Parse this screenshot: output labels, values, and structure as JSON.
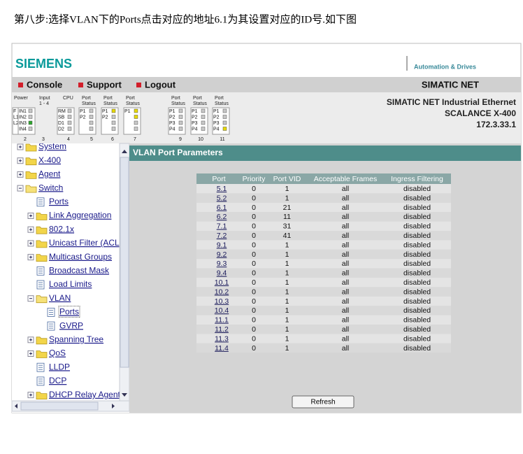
{
  "caption": "第八步:选择VLAN下的Ports点击对应的地址6.1为其设置对应的ID号.如下图",
  "header": {
    "brand": "SIEMENS",
    "tagline": "Automation & Drives"
  },
  "menu": {
    "items": [
      "Console",
      "Support",
      "Logout"
    ],
    "product": "SIMATIC NET"
  },
  "device": {
    "headers": [
      [
        "Power"
      ],
      [
        "Input",
        "1 - 4"
      ],
      [
        "CPU"
      ],
      [
        "Port",
        "Status"
      ],
      [
        "Port",
        "Status"
      ],
      [
        "Port",
        "Status"
      ],
      [
        "Port",
        "Status"
      ],
      [
        "Port",
        "Status"
      ],
      [
        "Port",
        "Status"
      ]
    ],
    "groups": [
      {
        "labels": [
          "F",
          "L1",
          "L2"
        ],
        "leds": [
          "off",
          "green",
          "green"
        ]
      },
      {
        "labels": [
          "IN1",
          "IN2",
          "IN3",
          "IN4"
        ],
        "leds": [
          "off",
          "off",
          "green",
          "off"
        ]
      },
      {
        "labels": [
          "RM",
          "SB",
          "D1",
          "D2"
        ],
        "leds": [
          "off",
          "off",
          "off",
          "off"
        ]
      },
      {
        "labels": [
          "P1",
          "P2"
        ],
        "leds": [
          "off",
          "off",
          "off",
          "off"
        ]
      },
      {
        "labels": [
          "P1",
          "P2"
        ],
        "leds": [
          "yellow",
          "off",
          "off",
          "off"
        ]
      },
      {
        "labels": [
          "P1"
        ],
        "leds": [
          "yellow",
          "yellow",
          "off",
          "off"
        ]
      },
      {
        "labels": [
          "P1",
          "P2",
          "P3",
          "P4"
        ],
        "leds": [
          "off",
          "off",
          "off",
          "off"
        ]
      },
      {
        "labels": [
          "P1",
          "P2",
          "P3",
          "P4"
        ],
        "leds": [
          "off",
          "off",
          "off",
          "off"
        ]
      },
      {
        "labels": [
          "P1",
          "P2",
          "P3",
          "P4"
        ],
        "leds": [
          "off",
          "off",
          "off",
          "yellow"
        ]
      }
    ],
    "numbers": [
      "2",
      "3",
      "4",
      "5",
      "6",
      "7",
      "9",
      "10",
      "11"
    ],
    "info": [
      "SIMATIC NET Industrial Ethernet",
      "SCALANCE X-400",
      "172.3.33.1"
    ]
  },
  "tree": [
    {
      "label": "System",
      "level": 0,
      "kind": "folder",
      "open": false
    },
    {
      "label": "X-400",
      "level": 0,
      "kind": "folder",
      "open": false
    },
    {
      "label": "Agent",
      "level": 0,
      "kind": "folder",
      "open": false
    },
    {
      "label": "Switch",
      "level": 0,
      "kind": "folder",
      "open": true
    },
    {
      "label": "Ports",
      "level": 1,
      "kind": "page"
    },
    {
      "label": "Link Aggregation",
      "level": 1,
      "kind": "folder",
      "open": false
    },
    {
      "label": "802.1x",
      "level": 1,
      "kind": "folder",
      "open": false
    },
    {
      "label": "Unicast Filter (ACL",
      "level": 1,
      "kind": "folder",
      "open": false
    },
    {
      "label": "Multicast Groups",
      "level": 1,
      "kind": "folder",
      "open": false
    },
    {
      "label": "Broadcast Mask",
      "level": 1,
      "kind": "page"
    },
    {
      "label": "Load Limits",
      "level": 1,
      "kind": "page"
    },
    {
      "label": "VLAN",
      "level": 1,
      "kind": "folder",
      "open": true
    },
    {
      "label": "Ports",
      "level": 2,
      "kind": "page",
      "selected": true
    },
    {
      "label": "GVRP",
      "level": 2,
      "kind": "page"
    },
    {
      "label": "Spanning Tree",
      "level": 1,
      "kind": "folder",
      "open": false
    },
    {
      "label": "QoS",
      "level": 1,
      "kind": "folder",
      "open": false
    },
    {
      "label": "LLDP",
      "level": 1,
      "kind": "page"
    },
    {
      "label": "DCP",
      "level": 1,
      "kind": "page"
    },
    {
      "label": "DHCP Relay Agent",
      "level": 1,
      "kind": "folder",
      "open": false
    }
  ],
  "panel": {
    "title": "VLAN Port Parameters",
    "table": {
      "columns": [
        "Port",
        "Priority",
        "Port VID",
        "Acceptable Frames",
        "Ingress Filtering"
      ],
      "rows": [
        [
          "5.1",
          0,
          1,
          "all",
          "disabled"
        ],
        [
          "5.2",
          0,
          1,
          "all",
          "disabled"
        ],
        [
          "6.1",
          0,
          21,
          "all",
          "disabled"
        ],
        [
          "6.2",
          0,
          11,
          "all",
          "disabled"
        ],
        [
          "7.1",
          0,
          31,
          "all",
          "disabled"
        ],
        [
          "7.2",
          0,
          41,
          "all",
          "disabled"
        ],
        [
          "9.1",
          0,
          1,
          "all",
          "disabled"
        ],
        [
          "9.2",
          0,
          1,
          "all",
          "disabled"
        ],
        [
          "9.3",
          0,
          1,
          "all",
          "disabled"
        ],
        [
          "9.4",
          0,
          1,
          "all",
          "disabled"
        ],
        [
          "10.1",
          0,
          1,
          "all",
          "disabled"
        ],
        [
          "10.2",
          0,
          1,
          "all",
          "disabled"
        ],
        [
          "10.3",
          0,
          1,
          "all",
          "disabled"
        ],
        [
          "10.4",
          0,
          1,
          "all",
          "disabled"
        ],
        [
          "11.1",
          0,
          1,
          "all",
          "disabled"
        ],
        [
          "11.2",
          0,
          1,
          "all",
          "disabled"
        ],
        [
          "11.3",
          0,
          1,
          "all",
          "disabled"
        ],
        [
          "11.4",
          0,
          1,
          "all",
          "disabled"
        ]
      ]
    },
    "button": "Refresh"
  }
}
